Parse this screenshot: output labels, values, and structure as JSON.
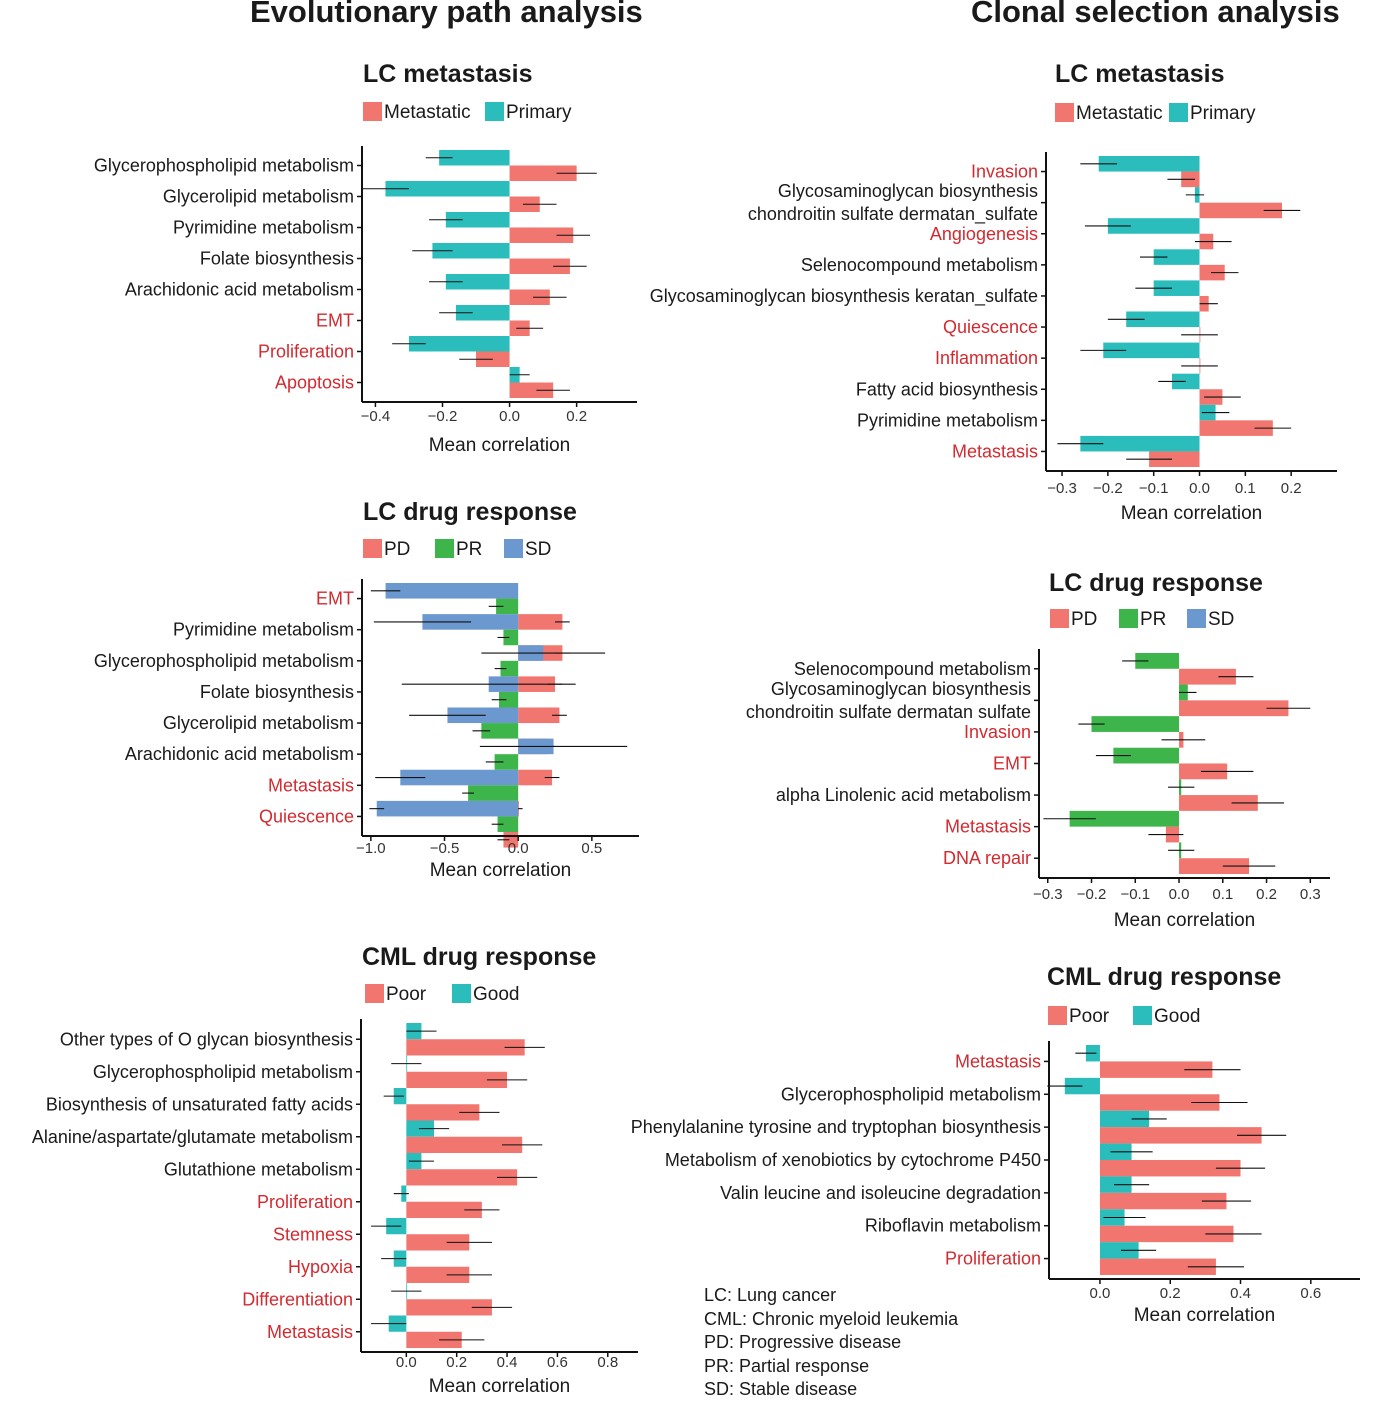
{
  "headings": {
    "left": "Evolutionary path analysis",
    "right": "Clonal selection analysis"
  },
  "colors": {
    "red": "#F0766F",
    "teal": "#2ABDBB",
    "green": "#3DB54A",
    "blue": "#6C98D0",
    "highlight_label": "#D32A30",
    "axis": "#111111"
  },
  "chart_data": [
    {
      "id": "evo-lc-metastasis",
      "type": "bar",
      "orientation": "horizontal",
      "title": "LC metastasis",
      "xlabel": "Mean correlation",
      "xlim": [
        -0.44,
        0.38
      ],
      "xticks": [
        -0.4,
        -0.2,
        0.0,
        0.2
      ],
      "tick_labels": [
        "−0.4",
        "−0.2",
        "0.0",
        "0.2"
      ],
      "series_names": [
        "Metastatic",
        "Primary"
      ],
      "series_colors": [
        "red",
        "teal"
      ],
      "legend_order": [
        0,
        1
      ],
      "draw_order": [
        1,
        0
      ],
      "categories": [
        {
          "label": "Glycerophospholipid metabolism",
          "highlight": false,
          "values": [
            0.2,
            -0.21
          ],
          "err": [
            0.06,
            0.04
          ]
        },
        {
          "label": "Glycerolipid metabolism",
          "highlight": false,
          "values": [
            0.09,
            -0.37
          ],
          "err": [
            0.05,
            0.07
          ]
        },
        {
          "label": "Pyrimidine metabolism",
          "highlight": false,
          "values": [
            0.19,
            -0.19
          ],
          "err": [
            0.05,
            0.05
          ]
        },
        {
          "label": "Folate biosynthesis",
          "highlight": false,
          "values": [
            0.18,
            -0.23
          ],
          "err": [
            0.05,
            0.06
          ]
        },
        {
          "label": "Arachidonic acid metabolism",
          "highlight": false,
          "values": [
            0.12,
            -0.19
          ],
          "err": [
            0.05,
            0.05
          ]
        },
        {
          "label": "EMT",
          "highlight": true,
          "values": [
            0.06,
            -0.16
          ],
          "err": [
            0.04,
            0.05
          ]
        },
        {
          "label": "Proliferation",
          "highlight": true,
          "values": [
            -0.1,
            -0.3
          ],
          "err": [
            0.05,
            0.05
          ]
        },
        {
          "label": "Apoptosis",
          "highlight": true,
          "values": [
            0.13,
            0.03
          ],
          "err": [
            0.05,
            0.03
          ]
        }
      ]
    },
    {
      "id": "evo-lc-drug",
      "type": "bar",
      "orientation": "horizontal",
      "title": "LC drug response",
      "xlabel": "Mean correlation",
      "xlim": [
        -1.06,
        0.82
      ],
      "xticks": [
        -1.0,
        -0.5,
        0.0,
        0.5
      ],
      "tick_labels": [
        "−1.0",
        "−0.5",
        "0.0",
        "0.5"
      ],
      "series_names": [
        "PD",
        "PR",
        "SD"
      ],
      "series_colors": [
        "red",
        "green",
        "blue"
      ],
      "legend_order": [
        0,
        1,
        2
      ],
      "draw_order": [
        2,
        1,
        0
      ],
      "categories": [
        {
          "label": "EMT",
          "highlight": true,
          "values": [
            0.3,
            -0.15,
            -0.9
          ],
          "err": [
            0.05,
            0.05,
            0.1
          ]
        },
        {
          "label": "Pyrimidine metabolism",
          "highlight": false,
          "values": [
            0.3,
            -0.1,
            -0.65
          ],
          "err": [
            0.05,
            0.04,
            0.33
          ]
        },
        {
          "label": "Glycerophospholipid metabolism",
          "highlight": false,
          "values": [
            0.25,
            -0.12,
            0.17
          ],
          "err": [
            0.05,
            0.04,
            0.42
          ]
        },
        {
          "label": "Folate biosynthesis",
          "highlight": false,
          "values": [
            0.28,
            -0.13,
            -0.2
          ],
          "err": [
            0.05,
            0.05,
            0.59
          ]
        },
        {
          "label": "Glycerolipid metabolism",
          "highlight": false,
          "values": [
            0.2,
            -0.25,
            -0.48
          ],
          "err": [
            0.05,
            0.06,
            0.26
          ]
        },
        {
          "label": "Arachidonic acid metabolism",
          "highlight": false,
          "values": [
            0.23,
            -0.16,
            0.24
          ],
          "err": [
            0.05,
            0.06,
            0.5
          ]
        },
        {
          "label": "Metastasis",
          "highlight": true,
          "values": [
            0.0,
            -0.34,
            -0.8
          ],
          "err": [
            0.03,
            0.04,
            0.17
          ]
        },
        {
          "label": "Quiescence",
          "highlight": true,
          "values": [
            -0.1,
            -0.14,
            -0.96
          ],
          "err": [
            0.04,
            0.04,
            0.05
          ]
        }
      ]
    },
    {
      "id": "evo-cml-drug",
      "type": "bar",
      "orientation": "horizontal",
      "title": "CML drug response",
      "xlabel": "Mean correlation",
      "xlim": [
        -0.18,
        0.92
      ],
      "xticks": [
        0.0,
        0.2,
        0.4,
        0.6,
        0.8
      ],
      "tick_labels": [
        "0.0",
        "0.2",
        "0.4",
        "0.6",
        "0.8"
      ],
      "series_names": [
        "Poor",
        "Good"
      ],
      "series_colors": [
        "red",
        "teal"
      ],
      "legend_order": [
        0,
        1
      ],
      "draw_order": [
        1,
        0
      ],
      "categories": [
        {
          "label": "Other types of O glycan biosynthesis",
          "highlight": false,
          "values": [
            0.47,
            0.06
          ],
          "err": [
            0.08,
            0.06
          ]
        },
        {
          "label": "Glycerophospholipid metabolism",
          "highlight": false,
          "values": [
            0.4,
            0.0
          ],
          "err": [
            0.08,
            0.06
          ]
        },
        {
          "label": "Biosynthesis of unsaturated fatty acids",
          "highlight": false,
          "values": [
            0.29,
            -0.05
          ],
          "err": [
            0.08,
            0.04
          ]
        },
        {
          "label": "Alanine/aspartate/glutamate metabolism",
          "highlight": false,
          "values": [
            0.46,
            0.11
          ],
          "err": [
            0.08,
            0.06
          ]
        },
        {
          "label": "Glutathione metabolism",
          "highlight": false,
          "values": [
            0.44,
            0.06
          ],
          "err": [
            0.08,
            0.05
          ]
        },
        {
          "label": "Proliferation",
          "highlight": true,
          "values": [
            0.3,
            -0.02
          ],
          "err": [
            0.07,
            0.03
          ]
        },
        {
          "label": "Stemness",
          "highlight": true,
          "values": [
            0.25,
            -0.08
          ],
          "err": [
            0.09,
            0.06
          ]
        },
        {
          "label": "Hypoxia",
          "highlight": true,
          "values": [
            0.25,
            -0.05
          ],
          "err": [
            0.09,
            0.05
          ]
        },
        {
          "label": "Differentiation",
          "highlight": true,
          "values": [
            0.34,
            0.0
          ],
          "err": [
            0.08,
            0.06
          ]
        },
        {
          "label": "Metastasis",
          "highlight": true,
          "values": [
            0.22,
            -0.07
          ],
          "err": [
            0.09,
            0.07
          ]
        }
      ]
    },
    {
      "id": "clonal-lc-metastasis",
      "type": "bar",
      "orientation": "horizontal",
      "title": "LC metastasis",
      "xlabel": "Mean correlation",
      "xlim": [
        -0.335,
        0.3
      ],
      "xticks": [
        -0.3,
        -0.2,
        -0.1,
        0.0,
        0.1,
        0.2
      ],
      "tick_labels": [
        "−0.3",
        "−0.2",
        "−0.1",
        "0.0",
        "0.1",
        "0.2"
      ],
      "series_names": [
        "Metastatic",
        "Primary"
      ],
      "series_colors": [
        "red",
        "teal"
      ],
      "legend_order": [
        0,
        1
      ],
      "draw_order": [
        1,
        0
      ],
      "categories": [
        {
          "label": "Invasion",
          "highlight": true,
          "values": [
            -0.04,
            -0.22
          ],
          "err": [
            0.03,
            0.04
          ]
        },
        {
          "label": "Glycosaminoglycan biosynthesis\nchondroitin sulfate dermatan_sulfate",
          "highlight": false,
          "values": [
            0.18,
            -0.01
          ],
          "err": [
            0.04,
            0.02
          ]
        },
        {
          "label": "Angiogenesis",
          "highlight": true,
          "values": [
            0.03,
            -0.2
          ],
          "err": [
            0.04,
            0.05
          ]
        },
        {
          "label": "Selenocompound metabolism",
          "highlight": false,
          "values": [
            0.055,
            -0.1
          ],
          "err": [
            0.03,
            0.03
          ]
        },
        {
          "label": "Glycosaminoglycan biosynthesis keratan_sulfate",
          "highlight": false,
          "values": [
            0.02,
            -0.1
          ],
          "err": [
            0.02,
            0.04
          ]
        },
        {
          "label": "Quiescence",
          "highlight": true,
          "values": [
            0.0,
            -0.16
          ],
          "err": [
            0.04,
            0.04
          ]
        },
        {
          "label": "Inflammation",
          "highlight": true,
          "values": [
            0.0,
            -0.21
          ],
          "err": [
            0.04,
            0.05
          ]
        },
        {
          "label": "Fatty acid biosynthesis",
          "highlight": false,
          "values": [
            0.05,
            -0.06
          ],
          "err": [
            0.04,
            0.03
          ]
        },
        {
          "label": "Pyrimidine metabolism",
          "highlight": false,
          "values": [
            0.16,
            0.035
          ],
          "err": [
            0.04,
            0.03
          ]
        },
        {
          "label": "Metastasis",
          "highlight": true,
          "values": [
            -0.11,
            -0.26
          ],
          "err": [
            0.05,
            0.05
          ]
        }
      ]
    },
    {
      "id": "clonal-lc-drug",
      "type": "bar",
      "orientation": "horizontal",
      "title": "LC drug response",
      "xlabel": "Mean correlation",
      "xlim": [
        -0.32,
        0.345
      ],
      "xticks": [
        -0.3,
        -0.2,
        -0.1,
        0.0,
        0.1,
        0.2,
        0.3
      ],
      "tick_labels": [
        "−0.3",
        "−0.2",
        "−0.1",
        "0.0",
        "0.1",
        "0.2",
        "0.3"
      ],
      "series_names": [
        "PD",
        "PR",
        "SD"
      ],
      "series_colors": [
        "red",
        "green",
        "blue"
      ],
      "legend_order": [
        0,
        1,
        2
      ],
      "draw_order": [
        1,
        0
      ],
      "categories": [
        {
          "label": "Selenocompound metabolism",
          "highlight": false,
          "values": [
            0.13,
            -0.1,
            null
          ],
          "err": [
            0.04,
            0.03,
            0
          ]
        },
        {
          "label": "Glycosaminoglycan biosynthesis\nchondroitin sulfate dermatan sulfate",
          "highlight": false,
          "values": [
            0.25,
            0.02,
            null
          ],
          "err": [
            0.05,
            0.02,
            0
          ]
        },
        {
          "label": "Invasion",
          "highlight": true,
          "values": [
            0.01,
            -0.2,
            null
          ],
          "err": [
            0.05,
            0.03,
            0
          ]
        },
        {
          "label": "EMT",
          "highlight": true,
          "values": [
            0.11,
            -0.15,
            null
          ],
          "err": [
            0.06,
            0.04,
            0
          ]
        },
        {
          "label": "alpha Linolenic acid metabolism",
          "highlight": false,
          "values": [
            0.18,
            0.005,
            null
          ],
          "err": [
            0.06,
            0.03,
            0
          ]
        },
        {
          "label": "Metastasis",
          "highlight": true,
          "values": [
            -0.03,
            -0.25,
            null
          ],
          "err": [
            0.04,
            0.06,
            0
          ]
        },
        {
          "label": "DNA repair",
          "highlight": true,
          "values": [
            0.16,
            0.005,
            null
          ],
          "err": [
            0.06,
            0.03,
            0
          ]
        }
      ]
    },
    {
      "id": "clonal-cml-drug",
      "type": "bar",
      "orientation": "horizontal",
      "title": "CML drug response",
      "xlabel": "Mean correlation",
      "xlim": [
        -0.145,
        0.74
      ],
      "xticks": [
        0.0,
        0.2,
        0.4,
        0.6
      ],
      "tick_labels": [
        "0.0",
        "0.2",
        "0.4",
        "0.6"
      ],
      "series_names": [
        "Poor",
        "Good"
      ],
      "series_colors": [
        "red",
        "teal"
      ],
      "legend_order": [
        0,
        1
      ],
      "draw_order": [
        1,
        0
      ],
      "categories": [
        {
          "label": "Metastasis",
          "highlight": true,
          "values": [
            0.32,
            -0.04
          ],
          "err": [
            0.08,
            0.03
          ]
        },
        {
          "label": "Glycerophospholipid metabolism",
          "highlight": false,
          "values": [
            0.34,
            -0.1
          ],
          "err": [
            0.08,
            0.05
          ]
        },
        {
          "label": "Phenylalanine tyrosine and tryptophan biosynthesis",
          "highlight": false,
          "values": [
            0.46,
            0.14
          ],
          "err": [
            0.07,
            0.05
          ]
        },
        {
          "label": "Metabolism of xenobiotics by cytochrome P450",
          "highlight": false,
          "values": [
            0.4,
            0.09
          ],
          "err": [
            0.07,
            0.06
          ]
        },
        {
          "label": "Valin leucine and isoleucine degradation",
          "highlight": false,
          "values": [
            0.36,
            0.09
          ],
          "err": [
            0.07,
            0.05
          ]
        },
        {
          "label": "Riboflavin metabolism",
          "highlight": false,
          "values": [
            0.38,
            0.07
          ],
          "err": [
            0.08,
            0.06
          ]
        },
        {
          "label": "Proliferation",
          "highlight": true,
          "values": [
            0.33,
            0.11
          ],
          "err": [
            0.08,
            0.05
          ]
        }
      ]
    }
  ],
  "notes": [
    "LC: Lung cancer",
    "CML: Chronic myeloid leukemia",
    "PD: Progressive disease",
    "PR: Partial response",
    "SD: Stable disease"
  ]
}
